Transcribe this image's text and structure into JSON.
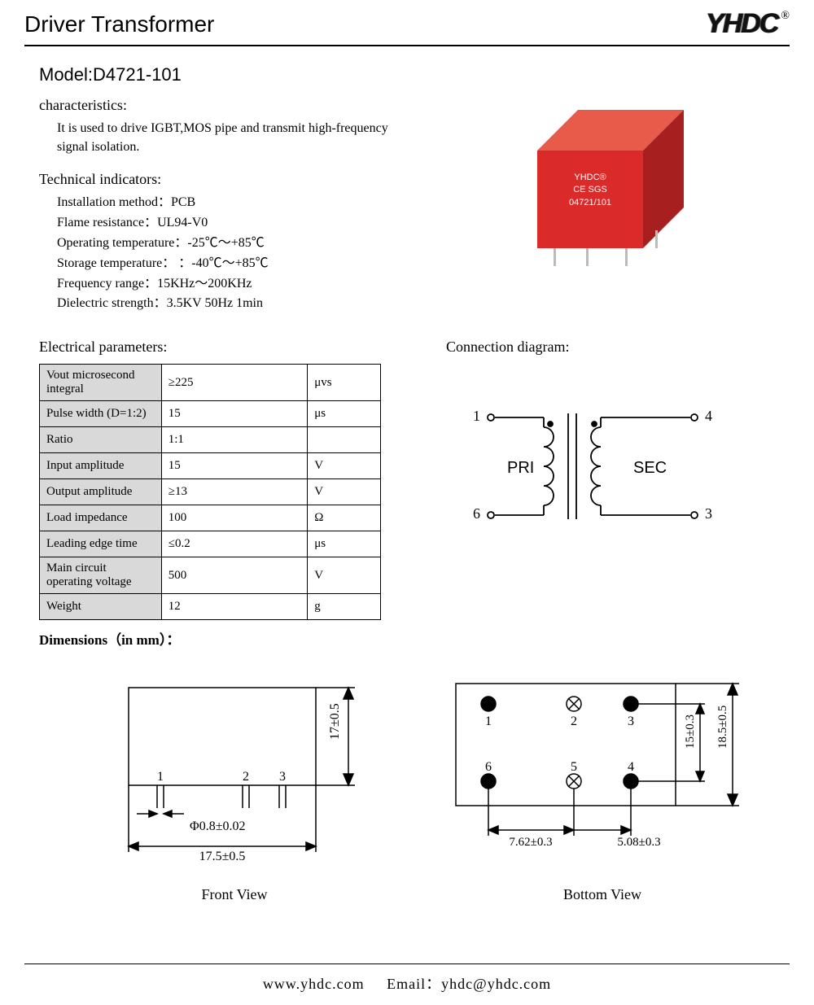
{
  "header": {
    "title": "Driver Transformer",
    "logo_text": "YHDC",
    "registered": "®"
  },
  "model": "Model:D4721-101",
  "characteristics": {
    "heading": "characteristics:",
    "text": "It is used to drive IGBT,MOS pipe and transmit high-frequency signal isolation."
  },
  "technical": {
    "heading": "Technical indicators:",
    "items": [
      "Installation method：PCB",
      "Flame resistance：UL94-V0",
      "Operating temperature：-25℃～+85℃",
      "Storage temperature： ：-40℃～+85℃",
      "Frequency range：15KHz～200KHz",
      "Dielectric strength：3.5KV 50Hz 1min"
    ]
  },
  "product_label": {
    "line1": "YHDC®",
    "line2": "CE  SGS",
    "line3": "04721/101"
  },
  "electrical": {
    "heading": "Electrical parameters:",
    "rows": [
      {
        "label": "Vout microsecond integral",
        "value": "≥225",
        "unit": "μvs",
        "small": true
      },
      {
        "label": "Pulse width (D=1:2)",
        "value": "15",
        "unit": "μs",
        "small": false
      },
      {
        "label": "Ratio",
        "value": "1:1",
        "unit": "",
        "small": false
      },
      {
        "label": "Input amplitude",
        "value": "15",
        "unit": "V",
        "small": false
      },
      {
        "label": "Output amplitude",
        "value": "≥13",
        "unit": "V",
        "small": false
      },
      {
        "label": "Load impedance",
        "value": "100",
        "unit": "Ω",
        "small": false
      },
      {
        "label": "Leading edge time",
        "value": "≤0.2",
        "unit": "μs",
        "small": false
      },
      {
        "label": "Main circuit operating voltage",
        "value": "500",
        "unit": "V",
        "small": true
      },
      {
        "label": "Weight",
        "value": "12",
        "unit": "g",
        "small": false
      }
    ]
  },
  "connection": {
    "heading": "Connection diagram:",
    "pri_label": "PRI",
    "sec_label": "SEC",
    "pins": {
      "tl": "1",
      "bl": "6",
      "tr": "4",
      "br": "3"
    }
  },
  "dimensions": {
    "heading": "Dimensions（in mm）：",
    "front": {
      "caption": "Front View",
      "h": "17±0.5",
      "pin_dia": "Φ0.8±0.02",
      "width": "17.5±0.5",
      "pins": [
        "1",
        "2",
        "3"
      ]
    },
    "bottom": {
      "caption": "Bottom View",
      "pins": [
        "1",
        "2",
        "3",
        "6",
        "5",
        "4"
      ],
      "d1": "15±0.3",
      "d2": "18.5±0.5",
      "p1": "7.62±0.3",
      "p2": "5.08±0.3"
    }
  },
  "footer": {
    "web": "www.yhdc.com",
    "email_label": "Email：",
    "email": "yhdc@yhdc.com"
  },
  "style": {
    "page_bg": "#ffffff",
    "border": "#000000",
    "table_header_bg": "#d9d9d9",
    "product_front": "#db2a2a",
    "product_top": "#e85a4a",
    "product_side": "#a81f1f"
  }
}
